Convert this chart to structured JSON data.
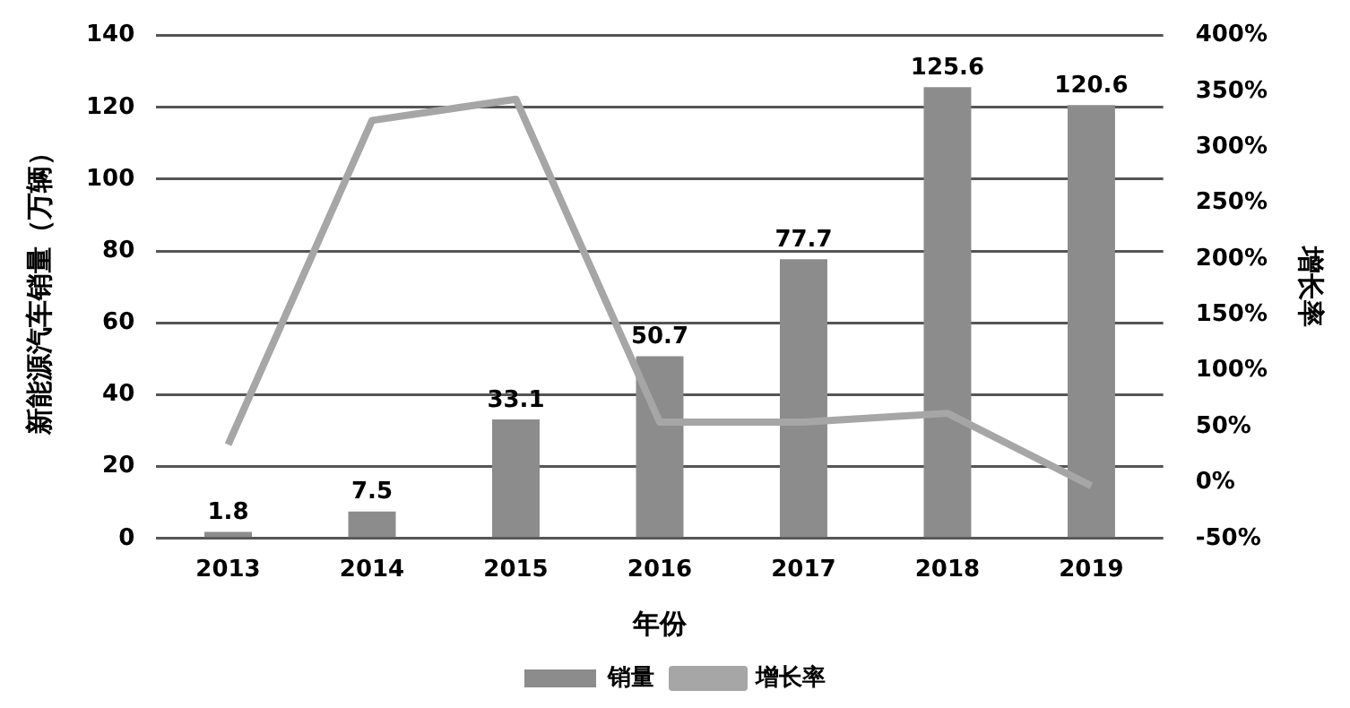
{
  "chart_data": {
    "type": "bar",
    "xlabel": "年份",
    "ylabel": "新能源汽车销量（万辆）",
    "y2label": "增长率",
    "categories": [
      "2013",
      "2014",
      "2015",
      "2016",
      "2017",
      "2018",
      "2019"
    ],
    "series": [
      {
        "name": "销量",
        "color": "#8c8c8c",
        "values": [
          1.8,
          7.5,
          33.1,
          50.7,
          77.7,
          125.6,
          120.6
        ],
        "value_labels": [
          "1.8",
          "7.5",
          "33.1",
          "50.7",
          "77.7",
          "125.6",
          "120.6"
        ]
      },
      {
        "name": "增长率",
        "type": "line",
        "axis": "y2",
        "color": "#a6a6a6",
        "values": [
          34,
          324,
          343,
          54,
          54,
          62,
          -3
        ]
      }
    ],
    "ylim": [
      0,
      140
    ],
    "yticks": [
      0,
      20,
      40,
      60,
      80,
      100,
      120,
      140
    ],
    "y2lim": [
      -50,
      400
    ],
    "y2ticks": [
      {
        "value": -50,
        "label": "-50%"
      },
      {
        "value": 0,
        "label": "0%"
      },
      {
        "value": 50,
        "label": "50%"
      },
      {
        "value": 100,
        "label": "100%"
      },
      {
        "value": 150,
        "label": "150%"
      },
      {
        "value": 200,
        "label": "200%"
      },
      {
        "value": 250,
        "label": "250%"
      },
      {
        "value": 300,
        "label": "300%"
      },
      {
        "value": 350,
        "label": "350%"
      },
      {
        "value": 400,
        "label": "400%"
      }
    ],
    "grid": "y",
    "legend": "bottom",
    "marker": "none"
  }
}
